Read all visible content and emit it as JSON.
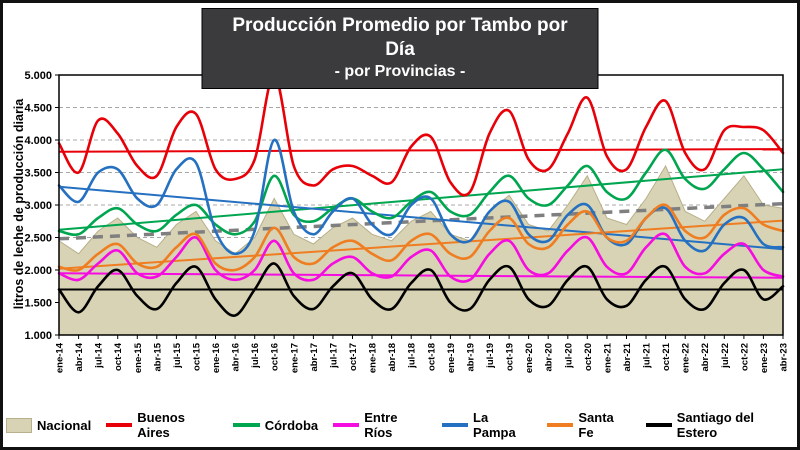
{
  "page": {
    "title_line1": "Producción Promedio por Tambo por Día",
    "title_line2": "- por Provincias -"
  },
  "chart_data": {
    "type": "line",
    "title": "Producción Promedio por Tambo por Día",
    "subtitle": "- por Provincias -",
    "ylabel": "litros de leche de producción diaria",
    "ylim": [
      1.0,
      5.0
    ],
    "ytick_step": 0.5,
    "ytick_labels": [
      "1.000",
      "1.500",
      "2.000",
      "2.500",
      "3.000",
      "3.500",
      "4.000",
      "4.500",
      "5.000"
    ],
    "grid": true,
    "legend_position": "bottom",
    "categories": [
      "ene-14",
      "abr-14",
      "jul-14",
      "oct-14",
      "ene-15",
      "abr-15",
      "jul-15",
      "oct-15",
      "ene-16",
      "abr-16",
      "jul-16",
      "oct-16",
      "ene-17",
      "abr-17",
      "jul-17",
      "oct-17",
      "ene-18",
      "abr-18",
      "jul-18",
      "oct-18",
      "ene-19",
      "abr-19",
      "jul-19",
      "oct-19",
      "ene-20",
      "abr-20",
      "jul-20",
      "oct-20",
      "ene-21",
      "abr-21",
      "jul-21",
      "oct-21",
      "ene-22",
      "abr-22",
      "jul-22",
      "oct-22",
      "ene-23",
      "abr-23"
    ],
    "series": [
      {
        "name": "Nacional",
        "type": "area",
        "color": "#d8d3b4",
        "edge": "#b7b08a",
        "values": [
          2.45,
          2.25,
          2.6,
          2.8,
          2.5,
          2.35,
          2.7,
          2.9,
          2.45,
          2.25,
          2.5,
          3.1,
          2.55,
          2.4,
          2.65,
          2.8,
          2.55,
          2.45,
          2.75,
          2.9,
          2.55,
          2.45,
          2.9,
          3.15,
          2.7,
          2.6,
          3.0,
          3.45,
          2.8,
          2.7,
          3.1,
          3.6,
          2.9,
          2.75,
          3.1,
          3.45,
          3.0,
          2.95
        ],
        "trend": {
          "start": 2.48,
          "end": 3.02,
          "color": "#7f7f7f",
          "dash": true,
          "width": 3.5
        }
      },
      {
        "name": "Buenos Aires",
        "type": "line",
        "color": "#e80009",
        "values": [
          3.95,
          3.5,
          4.3,
          4.1,
          3.6,
          3.45,
          4.2,
          4.4,
          3.55,
          3.4,
          3.7,
          5.0,
          3.6,
          3.3,
          3.55,
          3.6,
          3.45,
          3.35,
          3.9,
          4.05,
          3.35,
          3.2,
          4.1,
          4.45,
          3.7,
          3.55,
          4.1,
          4.65,
          3.75,
          3.55,
          4.2,
          4.6,
          3.8,
          3.55,
          4.15,
          4.2,
          4.15,
          3.8
        ],
        "trend": {
          "start": 3.82,
          "end": 3.86,
          "width": 2
        }
      },
      {
        "name": "Córdoba",
        "type": "line",
        "color": "#00a550",
        "values": [
          2.6,
          2.55,
          2.8,
          2.95,
          2.7,
          2.6,
          2.85,
          3.0,
          2.7,
          2.55,
          2.75,
          3.45,
          2.85,
          2.75,
          2.95,
          3.1,
          2.9,
          2.8,
          3.05,
          3.2,
          2.9,
          2.85,
          3.2,
          3.45,
          3.1,
          3.0,
          3.3,
          3.6,
          3.2,
          3.1,
          3.5,
          3.85,
          3.4,
          3.25,
          3.55,
          3.8,
          3.55,
          3.2
        ],
        "trend": {
          "start": 2.62,
          "end": 3.55,
          "width": 2
        }
      },
      {
        "name": "Entre Ríos",
        "type": "line",
        "color": "#f50ce0",
        "values": [
          1.95,
          1.85,
          2.1,
          2.3,
          1.95,
          1.9,
          2.2,
          2.5,
          2.0,
          1.85,
          2.0,
          2.45,
          1.95,
          1.85,
          2.1,
          2.2,
          1.95,
          1.9,
          2.2,
          2.3,
          1.9,
          1.85,
          2.25,
          2.45,
          2.0,
          1.95,
          2.3,
          2.5,
          2.05,
          1.95,
          2.35,
          2.55,
          2.05,
          1.95,
          2.25,
          2.4,
          2.0,
          1.9
        ],
        "trend": {
          "start": 1.95,
          "end": 1.88,
          "width": 2
        }
      },
      {
        "name": "La Pampa",
        "type": "line",
        "color": "#2570c0",
        "values": [
          3.3,
          3.05,
          3.5,
          3.55,
          3.1,
          3.0,
          3.55,
          3.65,
          2.6,
          2.25,
          2.6,
          4.0,
          2.9,
          2.55,
          2.9,
          3.1,
          2.7,
          2.55,
          3.0,
          3.1,
          2.55,
          2.45,
          2.9,
          3.05,
          2.55,
          2.45,
          2.85,
          3.0,
          2.5,
          2.4,
          2.8,
          2.95,
          2.45,
          2.3,
          2.7,
          2.8,
          2.4,
          2.35
        ],
        "trend": {
          "start": 3.28,
          "end": 2.32,
          "width": 2
        }
      },
      {
        "name": "Santa Fe",
        "type": "line",
        "color": "#ef7d21",
        "values": [
          2.05,
          2.0,
          2.25,
          2.4,
          2.1,
          2.05,
          2.35,
          2.55,
          2.1,
          2.0,
          2.2,
          2.65,
          2.2,
          2.1,
          2.35,
          2.45,
          2.25,
          2.15,
          2.45,
          2.55,
          2.25,
          2.2,
          2.6,
          2.8,
          2.4,
          2.35,
          2.7,
          2.9,
          2.5,
          2.45,
          2.8,
          3.0,
          2.6,
          2.5,
          2.85,
          2.95,
          2.7,
          2.6
        ],
        "trend": {
          "start": 2.02,
          "end": 2.76,
          "width": 2
        }
      },
      {
        "name": "Santiago del Estero",
        "type": "line",
        "color": "#000000",
        "values": [
          1.7,
          1.35,
          1.75,
          2.0,
          1.6,
          1.4,
          1.8,
          2.05,
          1.55,
          1.3,
          1.7,
          2.1,
          1.6,
          1.4,
          1.75,
          1.95,
          1.55,
          1.4,
          1.8,
          2.0,
          1.5,
          1.4,
          1.85,
          2.05,
          1.55,
          1.45,
          1.85,
          2.05,
          1.55,
          1.45,
          1.85,
          2.05,
          1.55,
          1.4,
          1.8,
          2.0,
          1.55,
          1.75
        ],
        "trend": {
          "start": 1.7,
          "end": 1.7,
          "width": 2
        }
      }
    ]
  }
}
